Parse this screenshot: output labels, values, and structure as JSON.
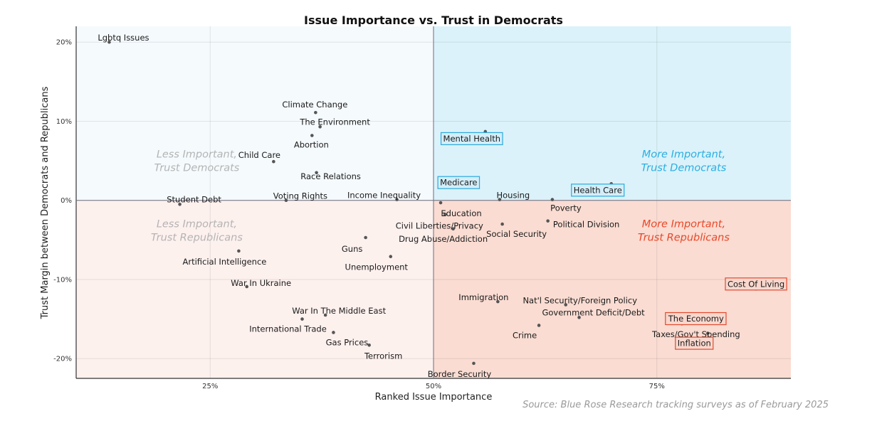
{
  "chart_data": {
    "type": "scatter",
    "title": "Issue Importance vs. Trust in Democrats",
    "xlabel": "Ranked Issue Importance",
    "ylabel": "Trust Margin between Democrats and Republicans",
    "xlim": [
      0.1,
      0.9
    ],
    "ylim": [
      -0.225,
      0.22
    ],
    "x_ticks": [
      {
        "value": 0.25,
        "label": "25%"
      },
      {
        "value": 0.5,
        "label": "50%"
      },
      {
        "value": 0.75,
        "label": "75%"
      }
    ],
    "y_ticks": [
      {
        "value": 0.2,
        "label": "20%"
      },
      {
        "value": 0.1,
        "label": "10%"
      },
      {
        "value": 0.0,
        "label": "0%"
      },
      {
        "value": -0.1,
        "label": "-10%"
      },
      {
        "value": -0.2,
        "label": "-20%"
      }
    ],
    "grid": true,
    "colors": {
      "upper_right": "#dbf2fa",
      "upper_left": "#f5fafd",
      "lower_left": "#fdf1ee",
      "lower_right": "#fadcd2",
      "dem_blue": "#2baee0",
      "rep_red": "#e8482a",
      "box_blue": "#2ca9dc",
      "box_red": "#e24a2e",
      "point": "#555555"
    },
    "quadrant_labels": [
      {
        "line1": "Less Important,",
        "line2": "Trust Democrats",
        "tone": "gray",
        "x": 0.235,
        "y": 0.045
      },
      {
        "line1": "More Important,",
        "line2": "Trust Democrats",
        "tone": "blue",
        "x": 0.78,
        "y": 0.045
      },
      {
        "line1": "Less Important,",
        "line2": "Trust Republicans",
        "tone": "gray",
        "x": 0.235,
        "y": -0.043
      },
      {
        "line1": "More Important,",
        "line2": "Trust Republicans",
        "tone": "red",
        "x": 0.78,
        "y": -0.043
      }
    ],
    "points": [
      {
        "label": "Lgbtq Issues",
        "x": 0.137,
        "y": 0.2
      },
      {
        "label": "Climate Change",
        "x": 0.368,
        "y": 0.111
      },
      {
        "label": "The Environment",
        "x": 0.373,
        "y": 0.093
      },
      {
        "label": "Abortion",
        "x": 0.364,
        "y": 0.082
      },
      {
        "label": "Child Care",
        "x": 0.321,
        "y": 0.049
      },
      {
        "label": "Race Relations",
        "x": 0.369,
        "y": 0.035
      },
      {
        "label": "Student Debt",
        "x": 0.216,
        "y": -0.005
      },
      {
        "label": "Voting Rights",
        "x": 0.335,
        "y": 0.0
      },
      {
        "label": "Income Inequality",
        "x": 0.459,
        "y": 0.001
      },
      {
        "label": "Mental Health",
        "x": 0.558,
        "y": 0.087,
        "box": "blue"
      },
      {
        "label": "Medicare",
        "x": 0.513,
        "y": 0.018,
        "box": "blue"
      },
      {
        "label": "Housing",
        "x": 0.574,
        "y": 0.001
      },
      {
        "label": "Health Care",
        "x": 0.699,
        "y": 0.021,
        "box": "blue"
      },
      {
        "label": "Poverty",
        "x": 0.633,
        "y": 0.001
      },
      {
        "label": "Education",
        "x": 0.508,
        "y": -0.003
      },
      {
        "label": "Civil Liberties/Privacy",
        "x": 0.513,
        "y": -0.018
      },
      {
        "label": "Political Division",
        "x": 0.628,
        "y": -0.026
      },
      {
        "label": "Social Security",
        "x": 0.577,
        "y": -0.03
      },
      {
        "label": "Drug Abuse/Addiction",
        "x": 0.522,
        "y": -0.036
      },
      {
        "label": "Guns",
        "x": 0.424,
        "y": -0.047
      },
      {
        "label": "Artificial Intelligence",
        "x": 0.282,
        "y": -0.064
      },
      {
        "label": "Unemployment",
        "x": 0.452,
        "y": -0.071
      },
      {
        "label": "War In Ukraine",
        "x": 0.291,
        "y": -0.109
      },
      {
        "label": "Cost Of Living",
        "x": 0.861,
        "y": -0.112,
        "box": "red"
      },
      {
        "label": "Immigration",
        "x": 0.572,
        "y": -0.128
      },
      {
        "label": "Nat'l Security/Foreign Policy",
        "x": 0.648,
        "y": -0.132
      },
      {
        "label": "War In The Middle East",
        "x": 0.379,
        "y": -0.145
      },
      {
        "label": "Government Deficit/Debt",
        "x": 0.663,
        "y": -0.148
      },
      {
        "label": "International Trade",
        "x": 0.353,
        "y": -0.15
      },
      {
        "label": "The Economy",
        "x": 0.809,
        "y": -0.154,
        "box": "red"
      },
      {
        "label": "Taxes/Gov't Spending",
        "x": 0.778,
        "y": -0.156
      },
      {
        "label": "Crime",
        "x": 0.618,
        "y": -0.158
      },
      {
        "label": "Gas Prices",
        "x": 0.388,
        "y": -0.167
      },
      {
        "label": "Inflation",
        "x": 0.807,
        "y": -0.168,
        "box": "red"
      },
      {
        "label": "Terrorism",
        "x": 0.428,
        "y": -0.183
      },
      {
        "label": "Border Security",
        "x": 0.545,
        "y": -0.206
      }
    ]
  },
  "source": "Source: Blue Rose Research tracking surveys as of February 2025"
}
